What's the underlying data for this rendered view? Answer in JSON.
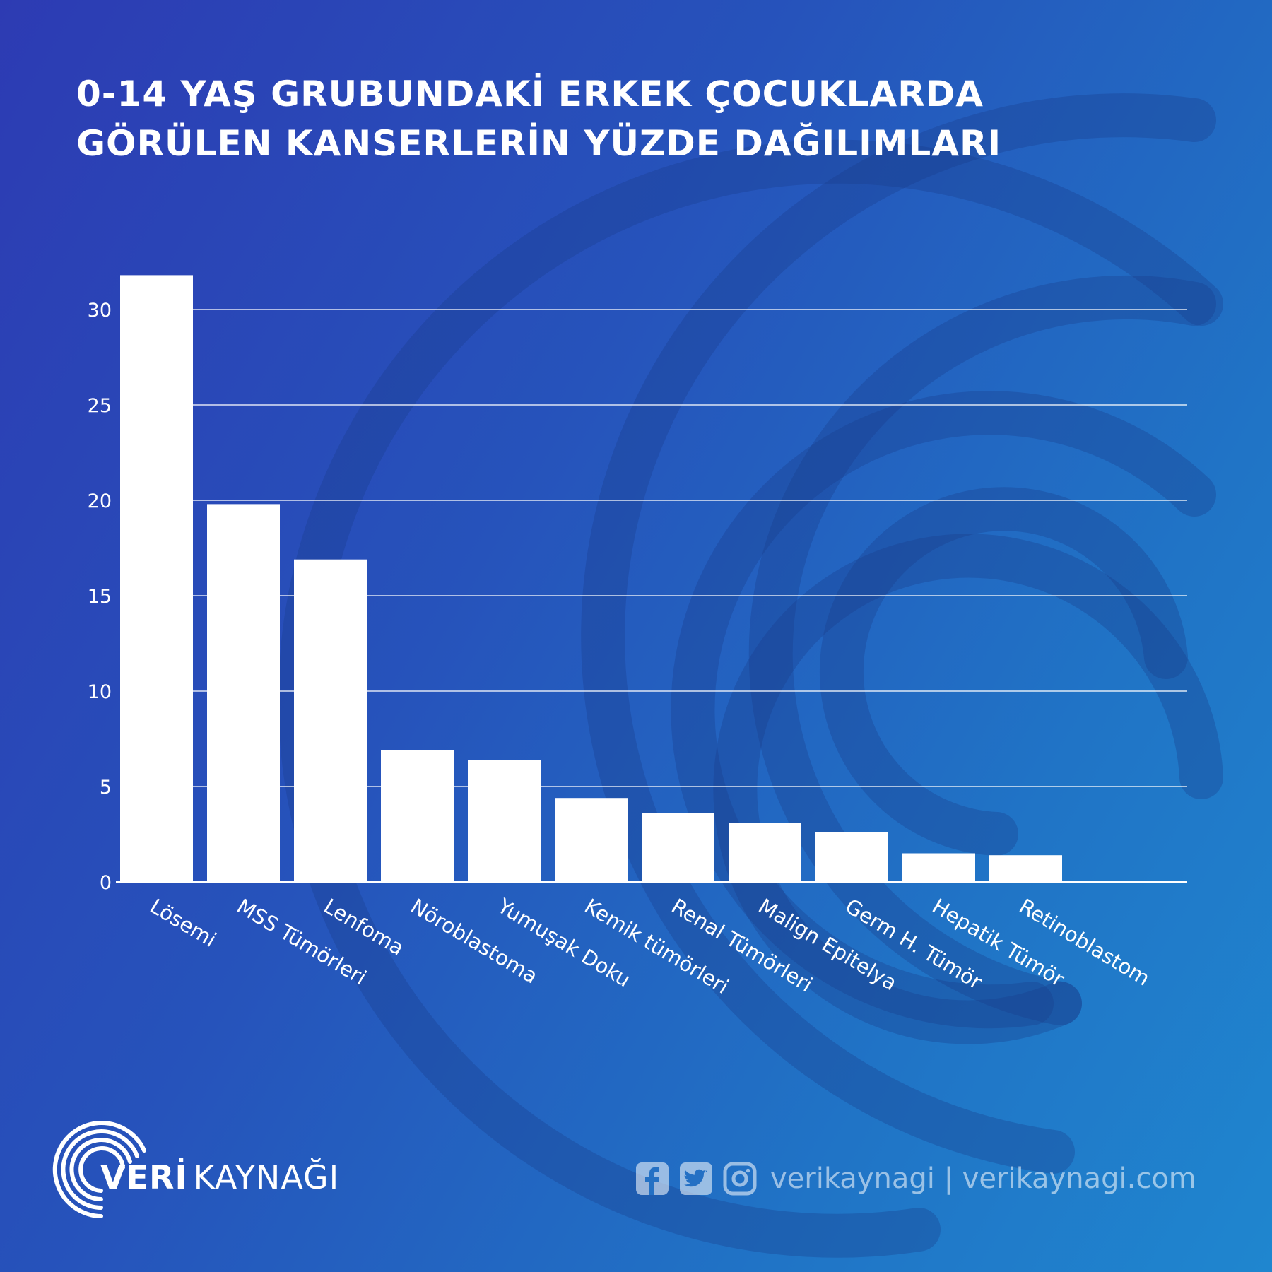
{
  "title_lines": [
    "0-14 YAŞ GRUBUNDAKİ ERKEK ÇOCUKLARDA",
    "GÖRÜLEN KANSERLERİN YÜZDE DAĞILIMLARI"
  ],
  "brand": {
    "veri": "VERİ",
    "kaynagi": "KAYNAĞI"
  },
  "social": {
    "icons": [
      "facebook-icon",
      "twitter-icon",
      "instagram-icon"
    ],
    "text": "verikaynagi | verikaynagi.com"
  },
  "colors": {
    "bar": "#ffffff",
    "grid": "#ffffff",
    "bg_start": "#2d3bb3",
    "bg_end": "#1f86cf"
  },
  "chart_data": {
    "type": "bar",
    "title": "0-14 YAŞ GRUBUNDAKİ ERKEK ÇOCUKLARDA GÖRÜLEN KANSERLERİN YÜZDE DAĞILIMLARI",
    "xlabel": "",
    "ylabel": "",
    "categories": [
      "Lösemi",
      "MSS Tümörleri",
      "Lenfoma",
      "Nöroblastoma",
      "Yumuşak Doku",
      "Kemik tümörleri",
      "Renal Tümörleri",
      "Malign Epitelya",
      "Germ H. Tümör",
      "Hepatik Tümör",
      "Retinoblastom"
    ],
    "values": [
      31.8,
      19.8,
      16.9,
      6.9,
      6.4,
      4.4,
      3.6,
      3.1,
      2.6,
      1.5,
      1.4
    ],
    "ylim": [
      0,
      31.8
    ],
    "yticks": [
      0,
      5,
      10,
      15,
      20,
      25,
      30
    ],
    "grid": true,
    "legend": "none"
  }
}
